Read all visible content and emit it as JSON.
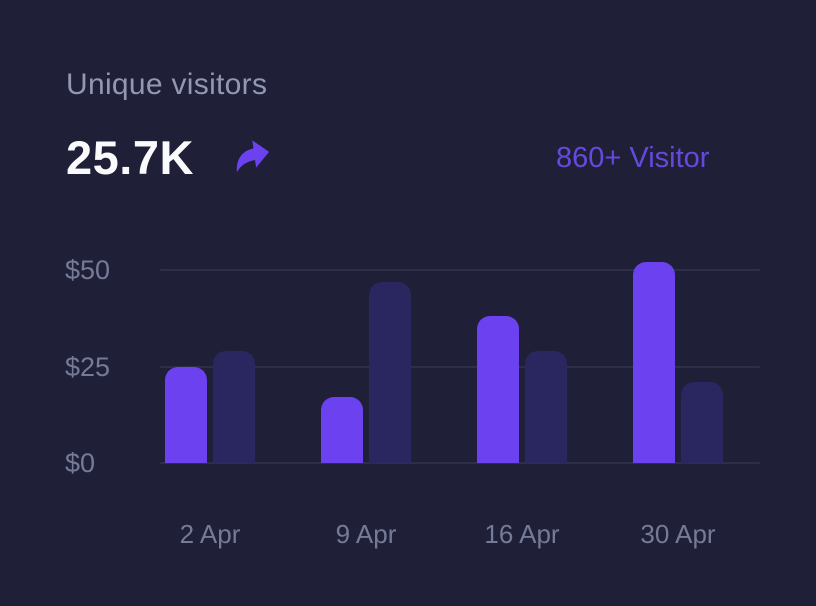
{
  "header": {
    "title": "Unique visitors",
    "value": "25.7K",
    "trend_icon": "share-arrow-icon",
    "link_label": "860+ Visitor"
  },
  "theme": {
    "background": "#1F2037",
    "text_primary": "#FAFAFD",
    "text_muted": "#9297B3",
    "axis_label": "#757A97",
    "accent": "#6C41F0",
    "accent_link": "#6549DF",
    "bar_primary": "#6C41F0",
    "bar_secondary": "#2A2660",
    "gridline": "#2D2F49"
  },
  "chart_data": {
    "type": "bar",
    "categories": [
      "2 Apr",
      "9 Apr",
      "16 Apr",
      "30 Apr"
    ],
    "series": [
      {
        "name": "primary",
        "color_key": "bar_primary",
        "values": [
          25,
          17,
          38,
          52
        ]
      },
      {
        "name": "secondary",
        "color_key": "bar_secondary",
        "values": [
          29,
          47,
          29,
          21
        ]
      }
    ],
    "yticks": [
      {
        "label": "$0",
        "value": 0
      },
      {
        "label": "$25",
        "value": 25
      },
      {
        "label": "$50",
        "value": 50
      }
    ],
    "ylim": [
      0,
      50
    ],
    "grid": true,
    "legend": false,
    "title": "",
    "xlabel": "",
    "ylabel": ""
  }
}
